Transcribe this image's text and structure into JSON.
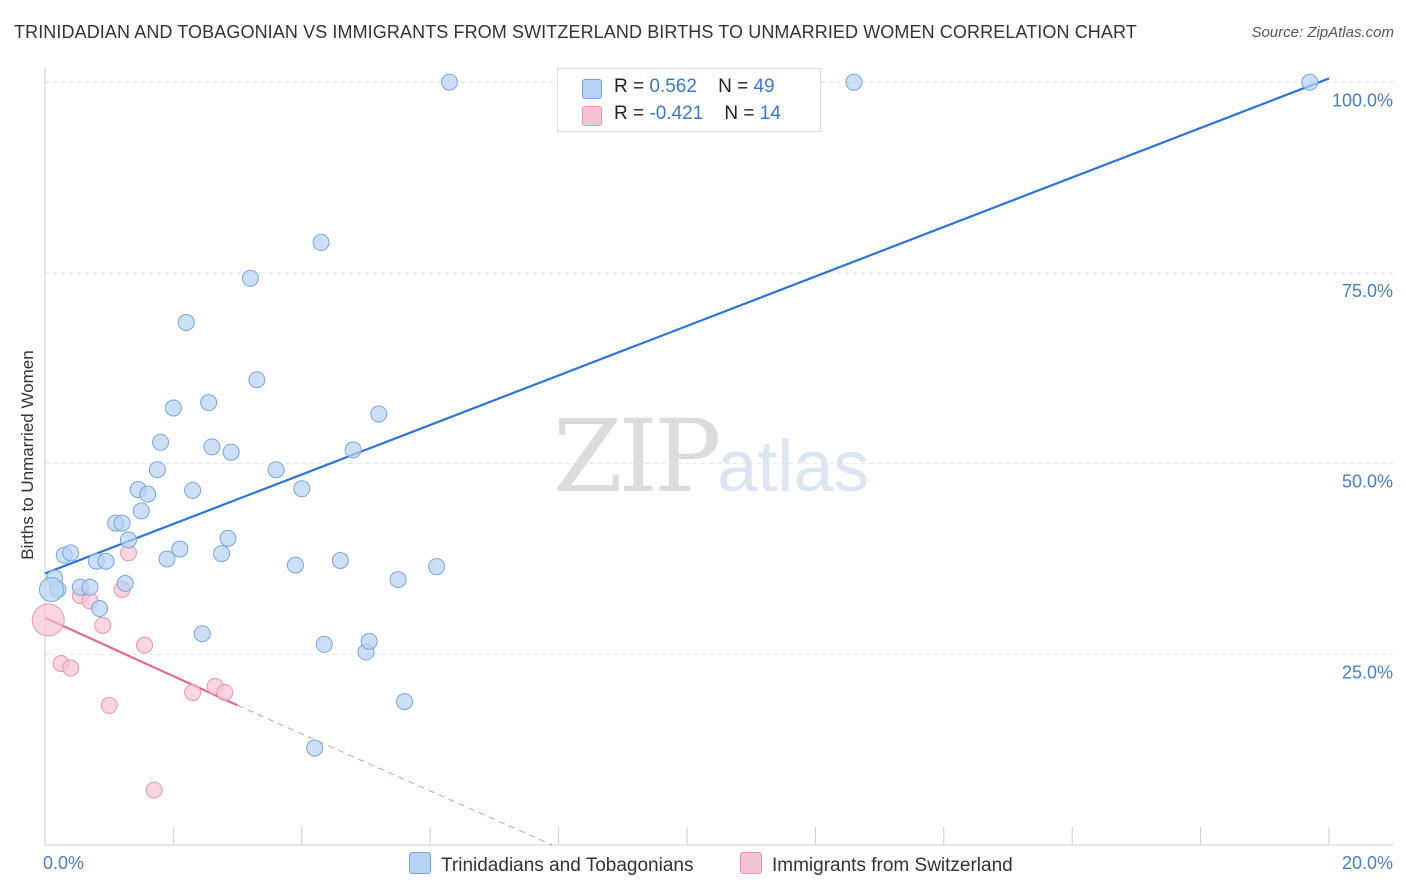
{
  "header": {
    "title": "TRINIDADIAN AND TOBAGONIAN VS IMMIGRANTS FROM SWITZERLAND BIRTHS TO UNMARRIED WOMEN CORRELATION CHART",
    "source": "Source: ZipAtlas.com"
  },
  "watermark": {
    "zip": "ZIP",
    "atlas": "atlas"
  },
  "legend": {
    "r_label": "R =",
    "n_label": "N =",
    "series1": {
      "r": "0.562",
      "n": "49"
    },
    "series2": {
      "r": "-0.421",
      "n": "14"
    }
  },
  "bottom_legend": {
    "series1": "Trinidadians and Tobagonians",
    "series2": "Immigrants from Switzerland"
  },
  "colors": {
    "blue_fill": "#b8d2f3",
    "blue_stroke": "#7aa6de",
    "blue_line": "#2f74d0",
    "pink_fill": "#f6c3d3",
    "pink_stroke": "#e996b2",
    "pink_line": "#e06a93",
    "grid": "#e2e2e2",
    "axis_text": "#4a7fc1"
  },
  "chart_data": {
    "type": "scatter",
    "title": "TRINIDADIAN AND TOBAGONIAN VS IMMIGRANTS FROM SWITZERLAND BIRTHS TO UNMARRIED WOMEN CORRELATION CHART",
    "xlabel": "",
    "ylabel": "Births to Unmarried Women",
    "xlim": [
      0,
      20
    ],
    "ylim": [
      0,
      102
    ],
    "x_tick_labels": [
      "0.0%",
      "20.0%"
    ],
    "y_ticks": [
      25,
      50,
      75,
      100
    ],
    "y_tick_labels": [
      "25.0%",
      "50.0%",
      "75.0%",
      "100.0%"
    ],
    "grid": true,
    "series": [
      {
        "name": "Trinidadians and Tobagonians",
        "r": 0.562,
        "n": 49,
        "points": [
          [
            0.15,
            35.0
          ],
          [
            0.2,
            33.5
          ],
          [
            0.3,
            38.0
          ],
          [
            0.4,
            38.3
          ],
          [
            0.55,
            33.8
          ],
          [
            0.7,
            33.8
          ],
          [
            0.8,
            37.2
          ],
          [
            0.85,
            31.0
          ],
          [
            0.95,
            37.2
          ],
          [
            1.1,
            42.2
          ],
          [
            1.2,
            42.2
          ],
          [
            1.25,
            34.3
          ],
          [
            1.3,
            40.0
          ],
          [
            1.45,
            46.6
          ],
          [
            1.5,
            43.8
          ],
          [
            1.6,
            46.0
          ],
          [
            1.75,
            49.2
          ],
          [
            1.8,
            52.8
          ],
          [
            1.9,
            37.5
          ],
          [
            2.0,
            57.3
          ],
          [
            2.1,
            38.8
          ],
          [
            2.2,
            68.5
          ],
          [
            2.3,
            46.5
          ],
          [
            2.45,
            27.7
          ],
          [
            2.55,
            58.0
          ],
          [
            2.6,
            52.2
          ],
          [
            2.75,
            38.2
          ],
          [
            2.85,
            40.2
          ],
          [
            2.9,
            51.5
          ],
          [
            3.2,
            74.3
          ],
          [
            3.3,
            61.0
          ],
          [
            3.6,
            49.2
          ],
          [
            3.9,
            36.7
          ],
          [
            4.0,
            46.7
          ],
          [
            4.2,
            12.7
          ],
          [
            4.3,
            79.0
          ],
          [
            4.35,
            26.3
          ],
          [
            4.6,
            37.3
          ],
          [
            4.8,
            51.8
          ],
          [
            5.0,
            25.3
          ],
          [
            5.05,
            26.7
          ],
          [
            5.2,
            56.5
          ],
          [
            5.5,
            34.8
          ],
          [
            5.6,
            18.8
          ],
          [
            6.1,
            36.5
          ],
          [
            6.3,
            100.0
          ],
          [
            12.6,
            100.0
          ],
          [
            19.7,
            100.0
          ],
          [
            0.1,
            33.5
          ]
        ],
        "trend": {
          "x0": 0,
          "y0": 35.6,
          "x1": 20,
          "y1": 100.5
        }
      },
      {
        "name": "Immigrants from Switzerland",
        "r": -0.421,
        "n": 14,
        "points": [
          [
            0.05,
            29.5
          ],
          [
            0.25,
            23.8
          ],
          [
            0.4,
            23.2
          ],
          [
            0.55,
            32.7
          ],
          [
            0.7,
            32.0
          ],
          [
            0.9,
            28.8
          ],
          [
            1.0,
            18.3
          ],
          [
            1.2,
            33.5
          ],
          [
            1.3,
            38.3
          ],
          [
            1.55,
            26.2
          ],
          [
            1.7,
            7.2
          ],
          [
            2.3,
            20.0
          ],
          [
            2.65,
            20.8
          ],
          [
            2.8,
            20.0
          ]
        ],
        "trend_solid": {
          "x0": 0,
          "y0": 29.8,
          "x1": 3.0,
          "y1": 18.3
        },
        "trend_dashed": {
          "x0": 3.0,
          "y0": 18.3,
          "x1": 7.9,
          "y1": 0
        }
      }
    ]
  }
}
